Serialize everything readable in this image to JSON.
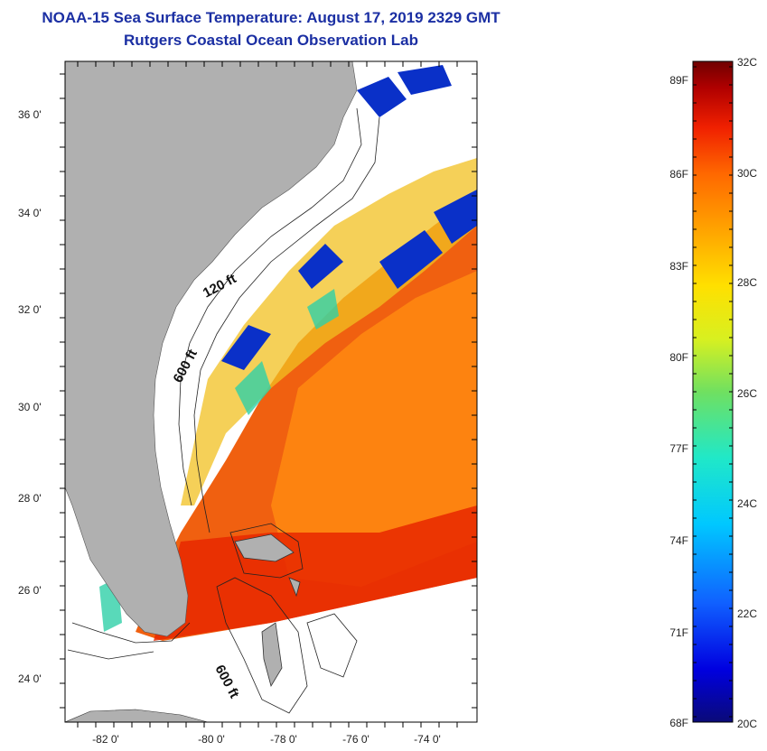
{
  "title": "NOAA-15 Sea Surface Temperature:  August 17, 2019 2329 GMT",
  "subtitle": "Rutgers Coastal Ocean Observation Lab",
  "map": {
    "lat_ticks": [
      "36 0'",
      "34 0'",
      "32 0'",
      "30 0'",
      "28 0'",
      "26 0'",
      "24 0'"
    ],
    "lon_ticks": [
      "-82 0'",
      "-80 0'",
      "-78 0'",
      "-76 0'",
      "-74 0'"
    ],
    "contour_labels": [
      "120 ft",
      "600 ft",
      "600 ft"
    ],
    "land_color": "#b0b0b0",
    "ocean_no_data_color": "#ffffff"
  },
  "colorbar": {
    "fahrenheit_labels": [
      "89F",
      "86F",
      "83F",
      "80F",
      "77F",
      "74F",
      "71F",
      "68F"
    ],
    "celsius_labels": [
      "32C",
      "30C",
      "28C",
      "26C",
      "24C",
      "22C",
      "20C"
    ],
    "min_c": 20,
    "max_c": 32
  }
}
